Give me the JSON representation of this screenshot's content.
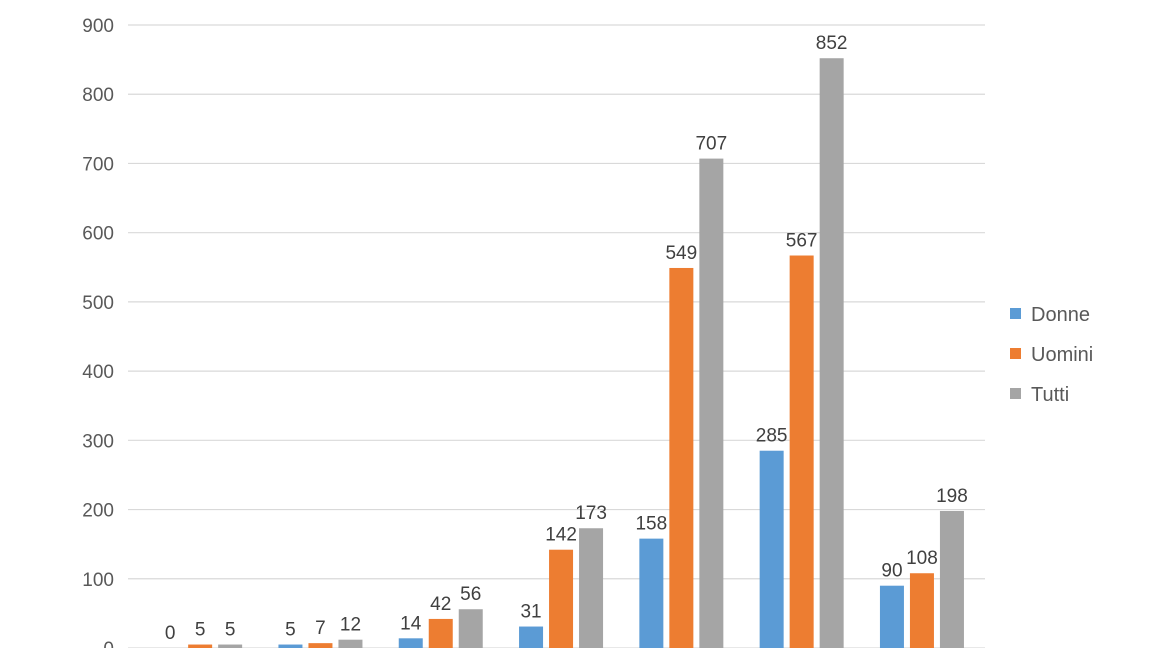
{
  "chart_data": {
    "type": "bar",
    "categories": [
      "",
      "",
      "",
      "",
      "",
      "",
      ""
    ],
    "series": [
      {
        "name": "Donne",
        "values": [
          0,
          5,
          14,
          31,
          158,
          285,
          90
        ],
        "color": "#5b9bd5"
      },
      {
        "name": "Uomini",
        "values": [
          5,
          7,
          42,
          142,
          549,
          567,
          108
        ],
        "color": "#ed7d31"
      },
      {
        "name": "Tutti",
        "values": [
          5,
          12,
          56,
          173,
          707,
          852,
          198
        ],
        "color": "#a5a5a5"
      }
    ],
    "ylim": [
      0,
      900
    ],
    "yticks": [
      "0",
      "100",
      "200",
      "300",
      "400",
      "500",
      "600",
      "700",
      "800",
      "900"
    ],
    "grid": true,
    "legend": "right",
    "data_labels": true
  }
}
